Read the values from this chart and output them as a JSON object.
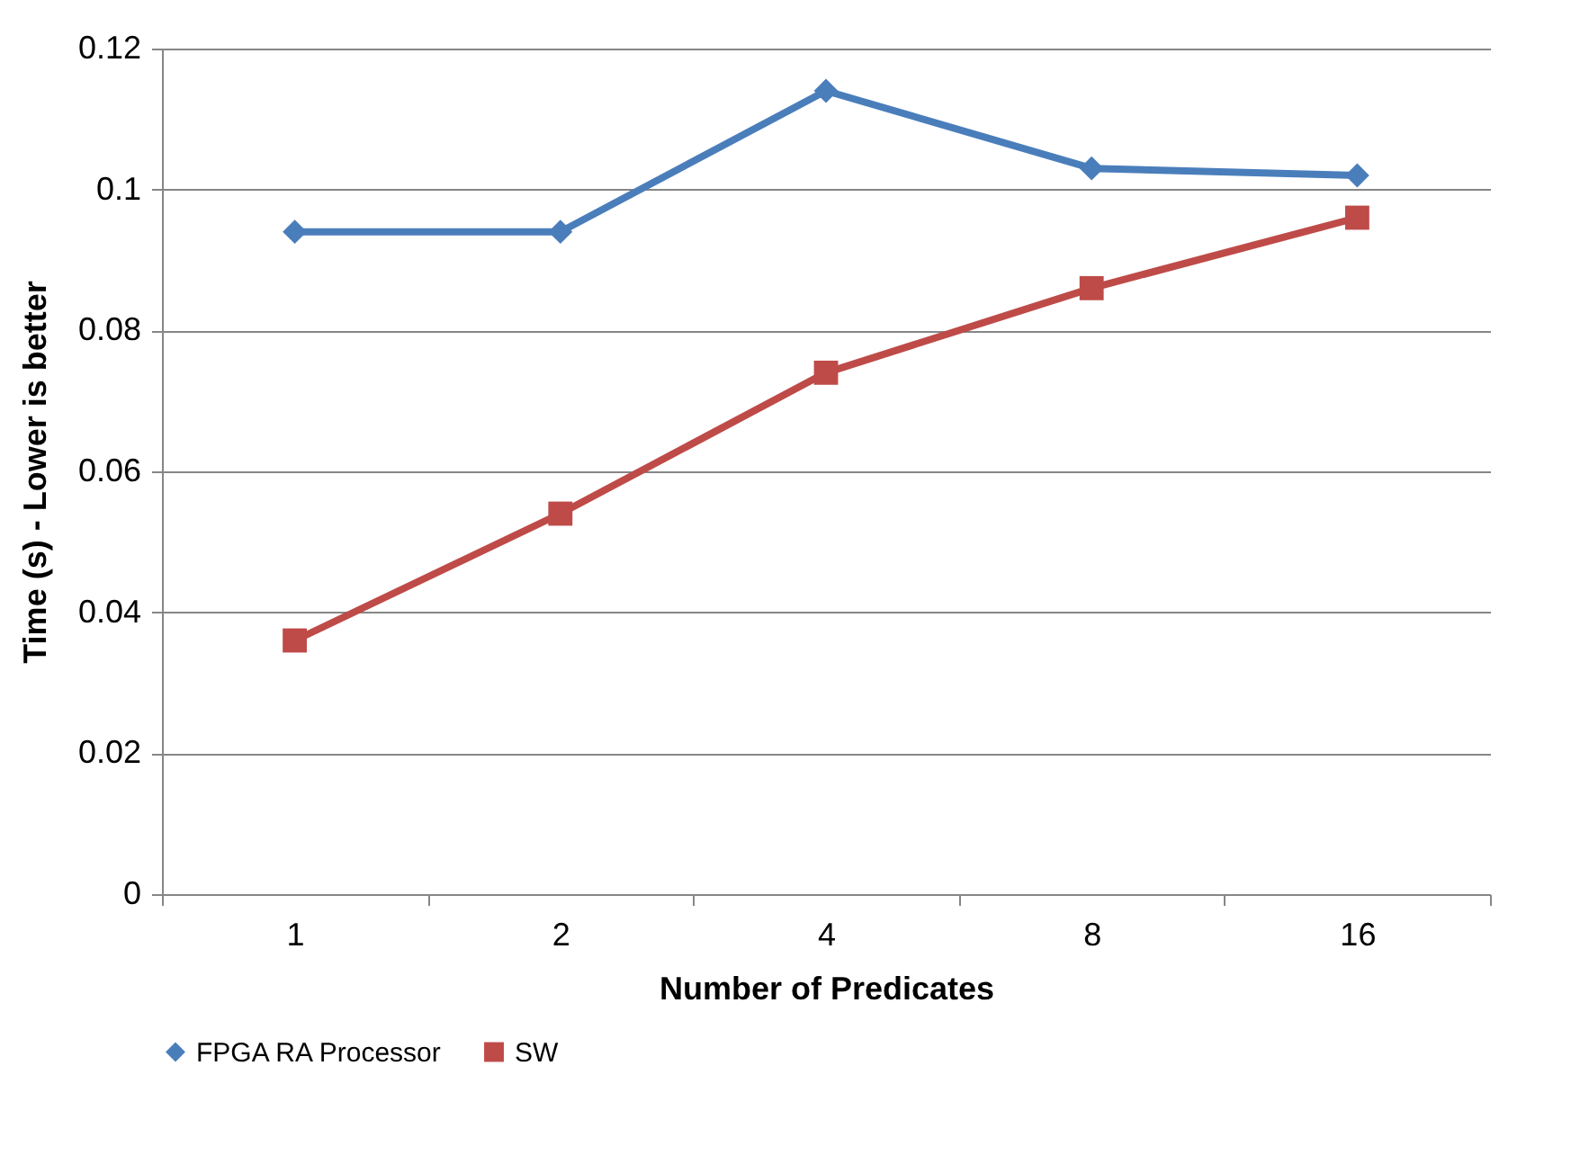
{
  "chart_data": {
    "type": "line",
    "xlabel": "Number of Predicates",
    "ylabel": "Time (s) - Lower is better",
    "categories": [
      "1",
      "2",
      "4",
      "8",
      "16"
    ],
    "series": [
      {
        "name": "FPGA RA Processor",
        "color": "#4a7ebb",
        "marker": "diamond",
        "values": [
          0.094,
          0.094,
          0.114,
          0.103,
          0.102
        ]
      },
      {
        "name": "SW",
        "color": "#be4b48",
        "marker": "square",
        "values": [
          0.036,
          0.054,
          0.074,
          0.086,
          0.096
        ]
      }
    ],
    "ylim": [
      0,
      0.12
    ],
    "yticks": [
      0,
      0.02,
      0.04,
      0.06,
      0.08,
      0.1,
      0.12
    ],
    "grid": "y",
    "legend": "bottom",
    "line_style": "solid"
  }
}
